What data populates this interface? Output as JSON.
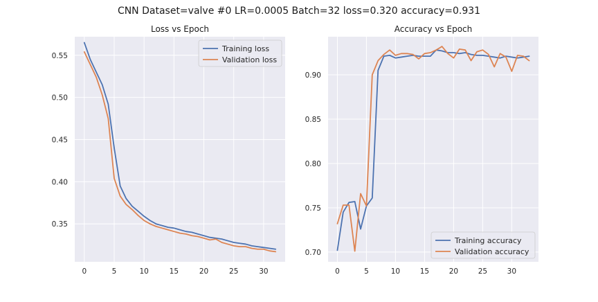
{
  "figure": {
    "title": "CNN Dataset=valve #0 LR=0.0005 Batch=32 loss=0.320 accuracy=0.931"
  },
  "colors": {
    "training": "#4c72b0",
    "validation": "#dd8452",
    "panel_bg": "#eaeaf2",
    "grid": "#ffffff"
  },
  "chart_data": [
    {
      "type": "line",
      "title": "Loss vs Epoch",
      "xlabel": "",
      "ylabel": "",
      "xlim": [
        -1.6,
        33.6
      ],
      "ylim": [
        0.305,
        0.572
      ],
      "xticks": [
        0,
        5,
        10,
        15,
        20,
        25,
        30
      ],
      "yticks": [
        0.35,
        0.4,
        0.45,
        0.5,
        0.55
      ],
      "ytick_labels": [
        "0.35",
        "0.40",
        "0.45",
        "0.50",
        "0.55"
      ],
      "grid": true,
      "legend": "upper right",
      "series": [
        {
          "name": "Training loss",
          "x": [
            0,
            1,
            2,
            3,
            4,
            5,
            6,
            7,
            8,
            9,
            10,
            11,
            12,
            13,
            14,
            15,
            16,
            17,
            18,
            19,
            20,
            21,
            22,
            23,
            24,
            25,
            26,
            27,
            28,
            29,
            30,
            31,
            32
          ],
          "values": [
            0.565,
            0.545,
            0.53,
            0.515,
            0.492,
            0.44,
            0.395,
            0.38,
            0.371,
            0.365,
            0.359,
            0.354,
            0.35,
            0.348,
            0.346,
            0.345,
            0.343,
            0.341,
            0.34,
            0.338,
            0.336,
            0.334,
            0.333,
            0.332,
            0.33,
            0.328,
            0.327,
            0.326,
            0.324,
            0.323,
            0.322,
            0.321,
            0.32
          ]
        },
        {
          "name": "Validation loss",
          "x": [
            0,
            1,
            2,
            3,
            4,
            5,
            6,
            7,
            8,
            9,
            10,
            11,
            12,
            13,
            14,
            15,
            16,
            17,
            18,
            19,
            20,
            21,
            22,
            23,
            24,
            25,
            26,
            27,
            28,
            29,
            30,
            31,
            32
          ],
          "values": [
            0.554,
            0.539,
            0.524,
            0.503,
            0.475,
            0.404,
            0.383,
            0.373,
            0.367,
            0.36,
            0.354,
            0.35,
            0.347,
            0.345,
            0.343,
            0.341,
            0.339,
            0.338,
            0.336,
            0.335,
            0.333,
            0.331,
            0.332,
            0.328,
            0.326,
            0.324,
            0.323,
            0.323,
            0.321,
            0.32,
            0.32,
            0.318,
            0.317
          ]
        }
      ]
    },
    {
      "type": "line",
      "title": "Accuracy vs Epoch",
      "xlabel": "",
      "ylabel": "",
      "xlim": [
        -1.6,
        34.6
      ],
      "ylim": [
        0.689,
        0.943
      ],
      "xticks": [
        0,
        5,
        10,
        15,
        20,
        25,
        30
      ],
      "yticks": [
        0.7,
        0.75,
        0.8,
        0.85,
        0.9
      ],
      "ytick_labels": [
        "0.70",
        "0.75",
        "0.80",
        "0.85",
        "0.90"
      ],
      "grid": true,
      "legend": "lower right",
      "series": [
        {
          "name": "Training accuracy",
          "x": [
            0,
            1,
            2,
            3,
            4,
            5,
            6,
            7,
            8,
            9,
            10,
            11,
            12,
            13,
            14,
            15,
            16,
            17,
            18,
            19,
            20,
            21,
            22,
            23,
            24,
            25,
            26,
            27,
            28,
            29,
            30,
            31,
            32,
            33
          ],
          "values": [
            0.702,
            0.745,
            0.756,
            0.757,
            0.726,
            0.752,
            0.761,
            0.905,
            0.921,
            0.922,
            0.919,
            0.92,
            0.921,
            0.922,
            0.921,
            0.921,
            0.921,
            0.928,
            0.927,
            0.925,
            0.925,
            0.924,
            0.925,
            0.923,
            0.922,
            0.922,
            0.921,
            0.92,
            0.919,
            0.921,
            0.92,
            0.919,
            0.92,
            0.921
          ]
        },
        {
          "name": "Validation accuracy",
          "x": [
            0,
            1,
            2,
            3,
            4,
            5,
            6,
            7,
            8,
            9,
            10,
            11,
            12,
            13,
            14,
            15,
            16,
            17,
            18,
            19,
            20,
            21,
            22,
            23,
            24,
            25,
            26,
            27,
            28,
            29,
            30,
            31,
            32,
            33
          ],
          "values": [
            0.732,
            0.753,
            0.753,
            0.701,
            0.766,
            0.752,
            0.9,
            0.916,
            0.923,
            0.928,
            0.922,
            0.924,
            0.924,
            0.923,
            0.918,
            0.924,
            0.925,
            0.928,
            0.932,
            0.924,
            0.919,
            0.929,
            0.928,
            0.916,
            0.926,
            0.928,
            0.923,
            0.909,
            0.924,
            0.92,
            0.904,
            0.922,
            0.921,
            0.916
          ]
        }
      ]
    }
  ]
}
